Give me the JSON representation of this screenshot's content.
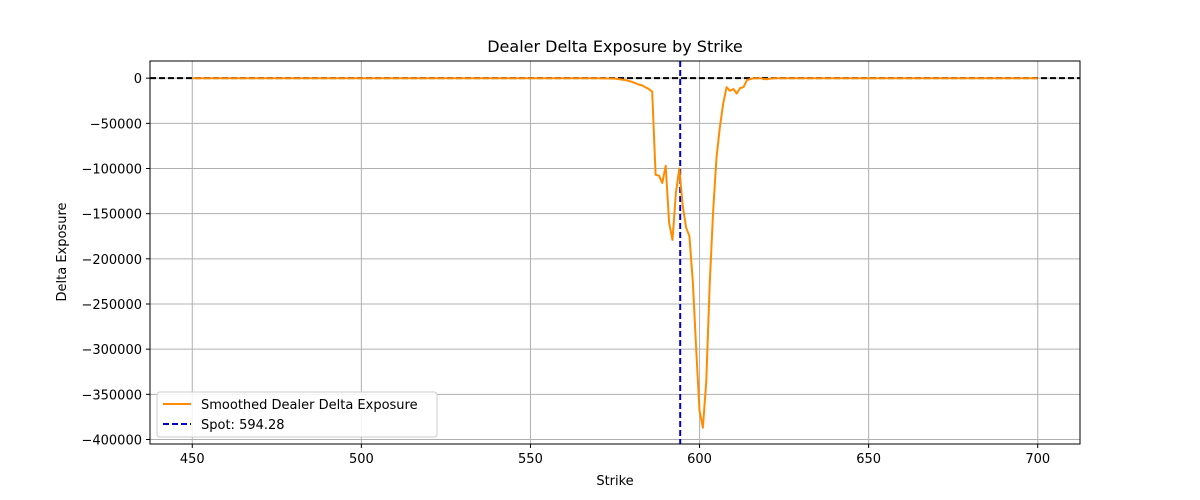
{
  "chart_data": {
    "type": "line",
    "title": "Dealer Delta Exposure by Strike",
    "xlabel": "Strike",
    "ylabel": "Delta Exposure",
    "xlim": [
      437.5,
      712.5
    ],
    "ylim": [
      -405000,
      19000
    ],
    "x_ticks": [
      450,
      500,
      550,
      600,
      650,
      700
    ],
    "y_ticks": [
      0,
      -50000,
      -100000,
      -150000,
      -200000,
      -250000,
      -300000,
      -350000,
      -400000
    ],
    "x_tick_labels": [
      "450",
      "500",
      "550",
      "600",
      "650",
      "700"
    ],
    "y_tick_labels": [
      "0",
      "−50000",
      "−100000",
      "−150000",
      "−200000",
      "−250000",
      "−300000",
      "−350000",
      "−400000"
    ],
    "grid": true,
    "legend_position": "lower-left",
    "series": [
      {
        "name": "Smoothed Dealer Delta Exposure",
        "color": "#ff8c00",
        "x": [
          450,
          500,
          550,
          570,
          575,
          578,
          580,
          582,
          583,
          584,
          585,
          586,
          587,
          588,
          589,
          590,
          591,
          592,
          593,
          594,
          595,
          596,
          597,
          598,
          599,
          600,
          601,
          602,
          603,
          604,
          605,
          606,
          607,
          608,
          609,
          610,
          611,
          612,
          613,
          614,
          615,
          616,
          617,
          618,
          619,
          620,
          621,
          622,
          623,
          625,
          650,
          700
        ],
        "y": [
          0,
          0,
          0,
          0,
          -500,
          -2000,
          -4000,
          -7000,
          -8000,
          -10000,
          -12000,
          -15000,
          -107000,
          -108000,
          -116000,
          -97000,
          -160000,
          -179000,
          -127000,
          -100000,
          -140000,
          -165000,
          -175000,
          -225000,
          -300000,
          -368000,
          -387000,
          -335000,
          -228000,
          -148000,
          -88000,
          -55000,
          -28000,
          -10000,
          -14000,
          -12000,
          -17000,
          -11000,
          -10000,
          -2000,
          -1000,
          0,
          0,
          0,
          -1000,
          -1000,
          -500,
          0,
          0,
          0,
          0,
          0
        ]
      }
    ],
    "reference_lines": [
      {
        "kind": "hline",
        "value": 0,
        "color": "#000000",
        "style": "dashed"
      },
      {
        "kind": "vline",
        "value": 594.28,
        "color": "#0000cc",
        "style": "dashed",
        "label": "Spot: 594.28"
      }
    ]
  },
  "legend": {
    "series_label": "Smoothed Dealer Delta Exposure",
    "spot_label": "Spot: 594.28"
  }
}
